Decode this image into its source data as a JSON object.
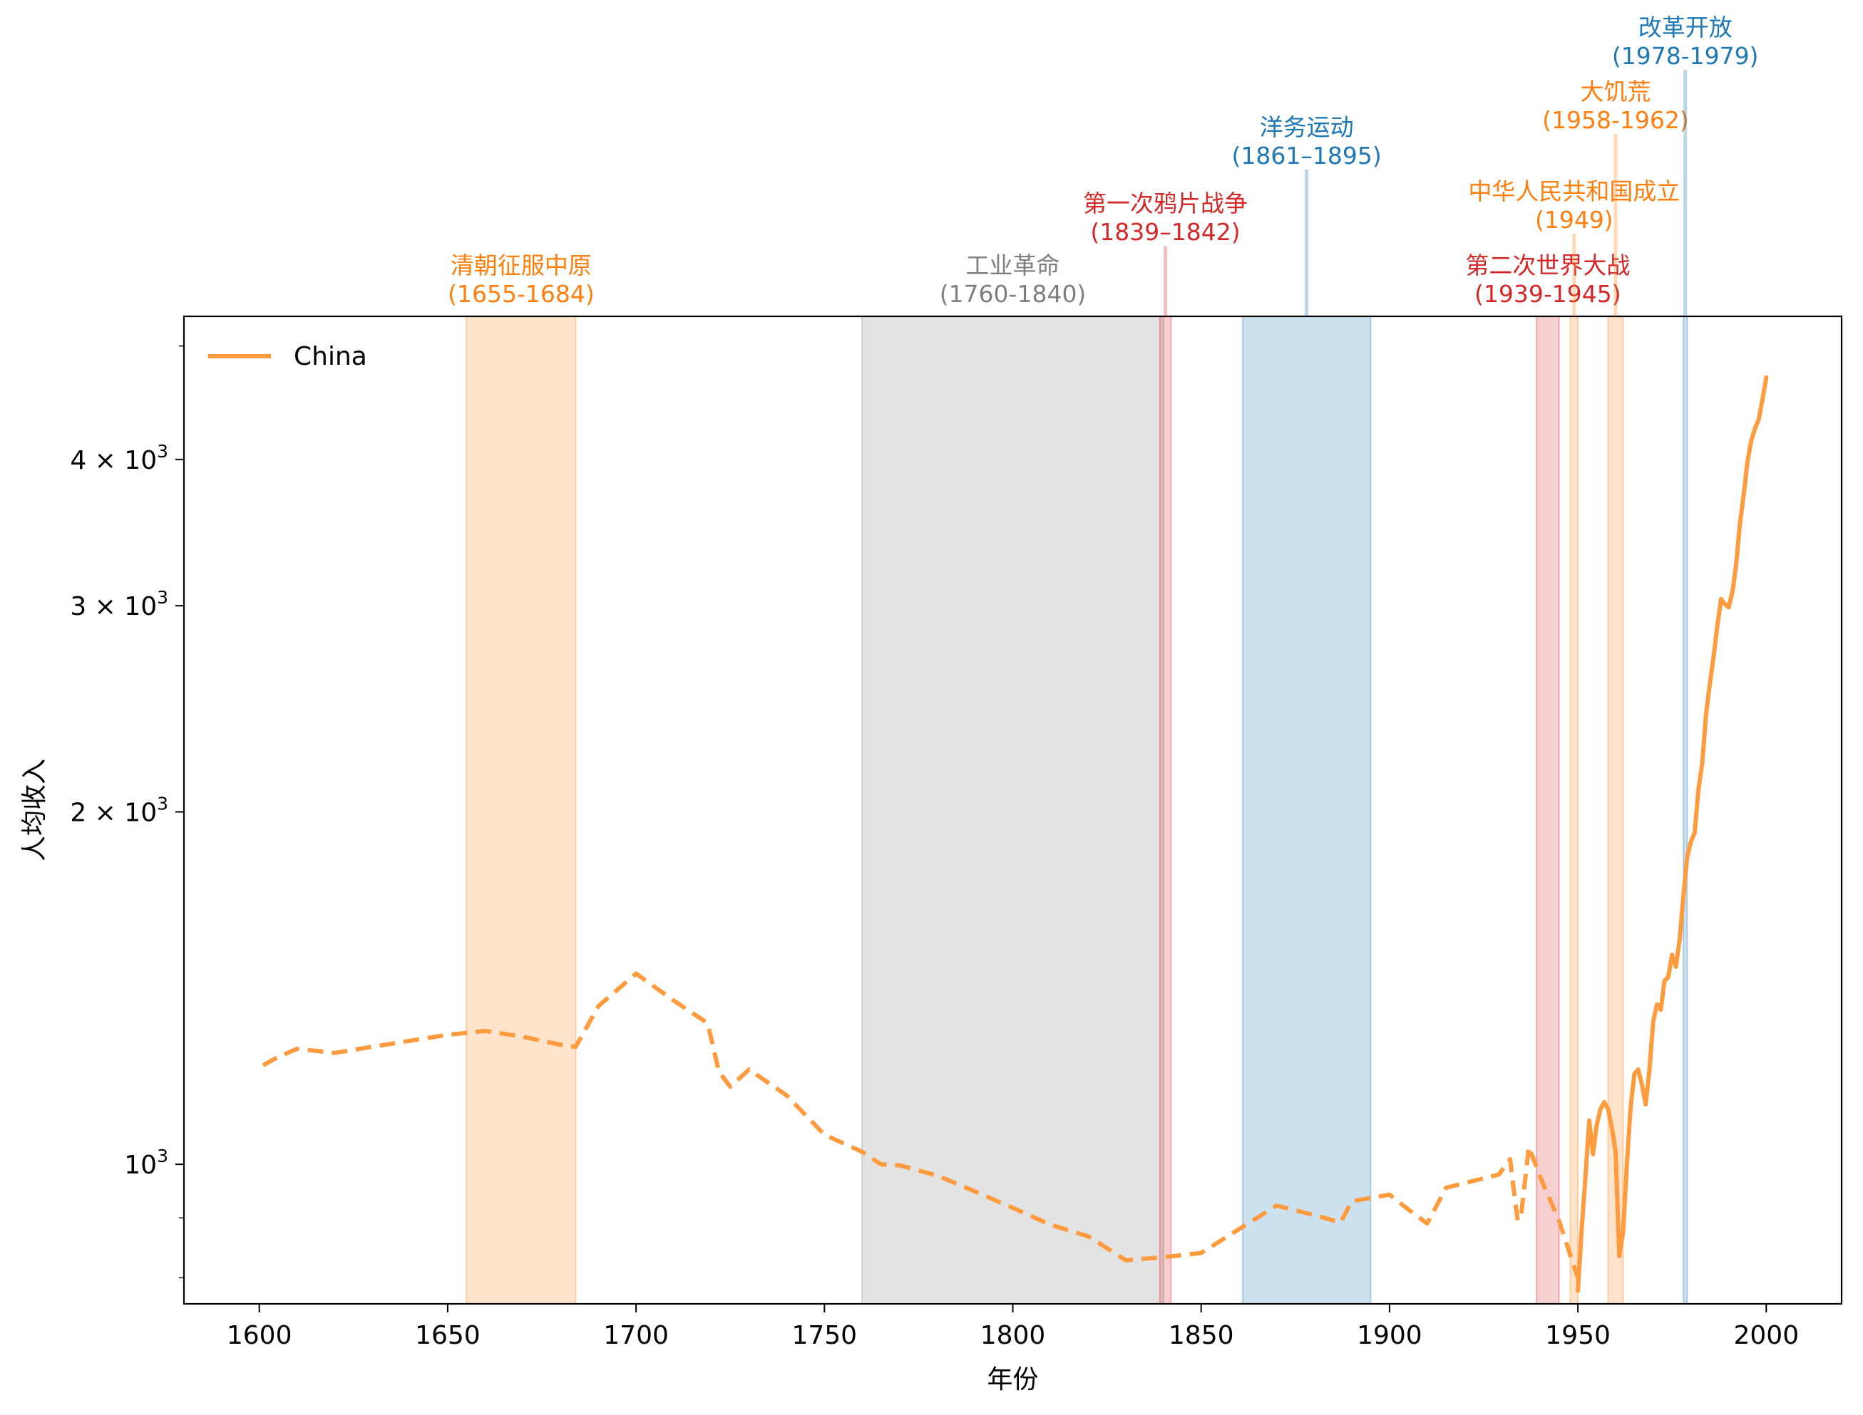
{
  "chart_data": {
    "type": "line",
    "title": "",
    "xlabel": "年份",
    "ylabel": "人均收入",
    "xlim": [
      1580,
      2020
    ],
    "ylim": [
      760,
      5300
    ],
    "yscale": "log",
    "grid": false,
    "legend": {
      "placement": "top-left",
      "entries": [
        "China"
      ]
    },
    "x_ticks": [
      {
        "value": 1600,
        "label": "1600"
      },
      {
        "value": 1650,
        "label": "1650"
      },
      {
        "value": 1700,
        "label": "1700"
      },
      {
        "value": 1750,
        "label": "1750"
      },
      {
        "value": 1800,
        "label": "1800"
      },
      {
        "value": 1850,
        "label": "1850"
      },
      {
        "value": 1900,
        "label": "1900"
      },
      {
        "value": 1950,
        "label": "1950"
      },
      {
        "value": 2000,
        "label": "2000"
      }
    ],
    "y_ticks": [
      {
        "value": 1000,
        "base": "10",
        "exp": "3"
      },
      {
        "value": 2000,
        "base": "2 × 10",
        "exp": "3"
      },
      {
        "value": 3000,
        "base": "3 × 10",
        "exp": "3"
      },
      {
        "value": 4000,
        "base": "4 × 10",
        "exp": "3"
      }
    ],
    "y_minor_ticks": [
      800,
      900,
      5000
    ],
    "series": [
      {
        "name": "China",
        "color": "#fd9b3e",
        "dashed_segment": {
          "x": [
            1601,
            1605,
            1610,
            1615,
            1620,
            1630,
            1640,
            1650,
            1660,
            1670,
            1680,
            1684,
            1690,
            1700,
            1710,
            1719,
            1722,
            1725,
            1730,
            1740,
            1750,
            1760,
            1765,
            1770,
            1780,
            1790,
            1800,
            1810,
            1820,
            1825,
            1830,
            1840,
            1850,
            1860,
            1870,
            1880,
            1887,
            1890,
            1900,
            1905,
            1910,
            1915,
            1929,
            1931,
            1932,
            1933,
            1934,
            1935,
            1937,
            1940,
            1945,
            1949,
            1950
          ],
          "y": [
            1215,
            1235,
            1255,
            1250,
            1245,
            1260,
            1275,
            1290,
            1300,
            1285,
            1265,
            1260,
            1365,
            1455,
            1380,
            1320,
            1200,
            1165,
            1205,
            1145,
            1060,
            1025,
            1000,
            998,
            978,
            948,
            918,
            888,
            868,
            848,
            828,
            833,
            840,
            880,
            922,
            905,
            892,
            930,
            942,
            915,
            890,
            955,
            980,
            1000,
            1010,
            950,
            895,
            910,
            1035,
            975,
            895,
            818,
            800
          ]
        },
        "solid_segment": {
          "x": [
            1950,
            1951,
            1952,
            1953,
            1954,
            1955,
            1956,
            1957,
            1958,
            1959,
            1960,
            1961,
            1962,
            1963,
            1964,
            1965,
            1966,
            1967,
            1968,
            1969,
            1970,
            1971,
            1972,
            1973,
            1974,
            1975,
            1976,
            1977,
            1978,
            1979,
            1980,
            1981,
            1982,
            1983,
            1984,
            1985,
            1986,
            1987,
            1988,
            1989,
            1990,
            1991,
            1992,
            1993,
            1994,
            1995,
            1996,
            1997,
            1998,
            1999,
            2000
          ],
          "y": [
            780,
            880,
            975,
            1090,
            1020,
            1080,
            1115,
            1130,
            1115,
            1075,
            1025,
            835,
            875,
            1000,
            1120,
            1195,
            1205,
            1170,
            1125,
            1205,
            1325,
            1370,
            1355,
            1435,
            1445,
            1510,
            1475,
            1555,
            1695,
            1830,
            1885,
            1920,
            2090,
            2200,
            2420,
            2570,
            2710,
            2880,
            3040,
            3010,
            2990,
            3080,
            3250,
            3520,
            3730,
            3980,
            4150,
            4250,
            4330,
            4500,
            4700
          ]
        }
      }
    ],
    "annotations": [
      {
        "name": "qing-conquest",
        "label": "清朝征服中原",
        "years": "(1655-1684)",
        "start": 1655,
        "end": 1684,
        "color": "#ff7f0e"
      },
      {
        "name": "industrial-revolution",
        "label": "工业革命",
        "years": "(1760-1840)",
        "start": 1760,
        "end": 1840,
        "color": "#7f7f7f"
      },
      {
        "name": "opium-war",
        "label": "第一次鸦片战争",
        "years": "(1839–1842)",
        "start": 1839,
        "end": 1842,
        "color": "#d62728"
      },
      {
        "name": "self-strengthening",
        "label": "洋务运动",
        "years": "(1861–1895)",
        "start": 1861,
        "end": 1895,
        "color": "#1f77b4"
      },
      {
        "name": "ww2",
        "label": "第二次世界大战",
        "years": "(1939-1945)",
        "start": 1939,
        "end": 1945,
        "color": "#d62728"
      },
      {
        "name": "prc-founding",
        "label": "中华人民共和国成立",
        "years": "(1949)",
        "start": 1948,
        "end": 1950,
        "color": "#ff7f0e"
      },
      {
        "name": "great-famine",
        "label": "大饥荒",
        "years": "(1958-1962)",
        "start": 1958,
        "end": 1962,
        "color": "#ff7f0e"
      },
      {
        "name": "reform-opening",
        "label": "改革开放",
        "years": "(1978-1979)",
        "start": 1978,
        "end": 1979,
        "color": "#1f77b4"
      }
    ]
  }
}
